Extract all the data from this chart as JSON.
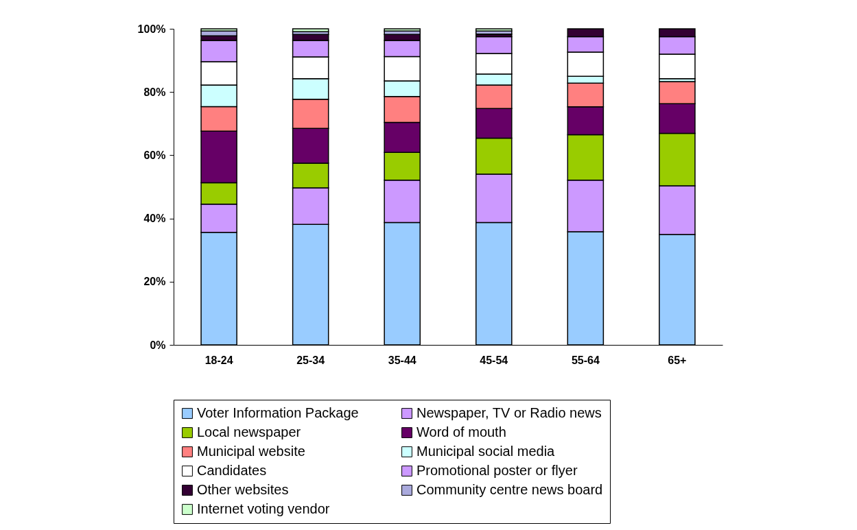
{
  "chart_data": {
    "type": "bar",
    "stacked": true,
    "categories": [
      "18-24",
      "25-34",
      "35-44",
      "45-54",
      "55-64",
      "65+"
    ],
    "ylim": [
      0,
      100
    ],
    "yticks": [
      {
        "value": 0,
        "label": "0%"
      },
      {
        "value": 20,
        "label": "20%"
      },
      {
        "value": 40,
        "label": "40%"
      },
      {
        "value": 60,
        "label": "60%"
      },
      {
        "value": 80,
        "label": "80%"
      },
      {
        "value": 100,
        "label": "100%"
      }
    ],
    "grid": false,
    "legend": "bottom",
    "series": [
      {
        "name": "Voter Information Package",
        "color": "#99ccff",
        "values": [
          35.6,
          38.1,
          38.7,
          38.7,
          35.8,
          34.9
        ]
      },
      {
        "name": "Newspaper, TV or Radio news",
        "color": "#cc99ff",
        "values": [
          8.9,
          11.6,
          13.4,
          15.3,
          16.3,
          15.4
        ]
      },
      {
        "name": "Local newspaper",
        "color": "#99cc00",
        "values": [
          6.8,
          7.8,
          8.8,
          11.4,
          14.4,
          16.6
        ]
      },
      {
        "name": "Word of mouth",
        "color": "#660066",
        "values": [
          16.3,
          11.0,
          9.5,
          9.4,
          8.8,
          9.4
        ]
      },
      {
        "name": "Municipal website",
        "color": "#ff8080",
        "values": [
          7.8,
          9.2,
          8.2,
          7.4,
          7.5,
          7.0
        ]
      },
      {
        "name": "Municipal social media",
        "color": "#ccffff",
        "values": [
          6.8,
          6.5,
          4.9,
          3.5,
          2.2,
          0.9
        ]
      },
      {
        "name": "Candidates",
        "color": "#ffffff",
        "values": [
          7.4,
          6.9,
          7.7,
          6.5,
          7.6,
          7.8
        ]
      },
      {
        "name": "Promotional poster or flyer",
        "color": "#cc99ff",
        "values": [
          6.7,
          5.2,
          5.1,
          5.3,
          4.9,
          5.5
        ]
      },
      {
        "name": "Other websites",
        "color": "#330033",
        "values": [
          1.5,
          1.9,
          1.9,
          0.8,
          2.5,
          2.5
        ]
      },
      {
        "name": "Community centre news board",
        "color": "#aaaadd",
        "values": [
          1.5,
          0.9,
          1.1,
          1.0,
          null,
          null
        ]
      },
      {
        "name": "Internet voting vendor",
        "color": "#ccffcc",
        "values": [
          0.7,
          0.9,
          0.7,
          0.7,
          null,
          null
        ]
      }
    ]
  }
}
